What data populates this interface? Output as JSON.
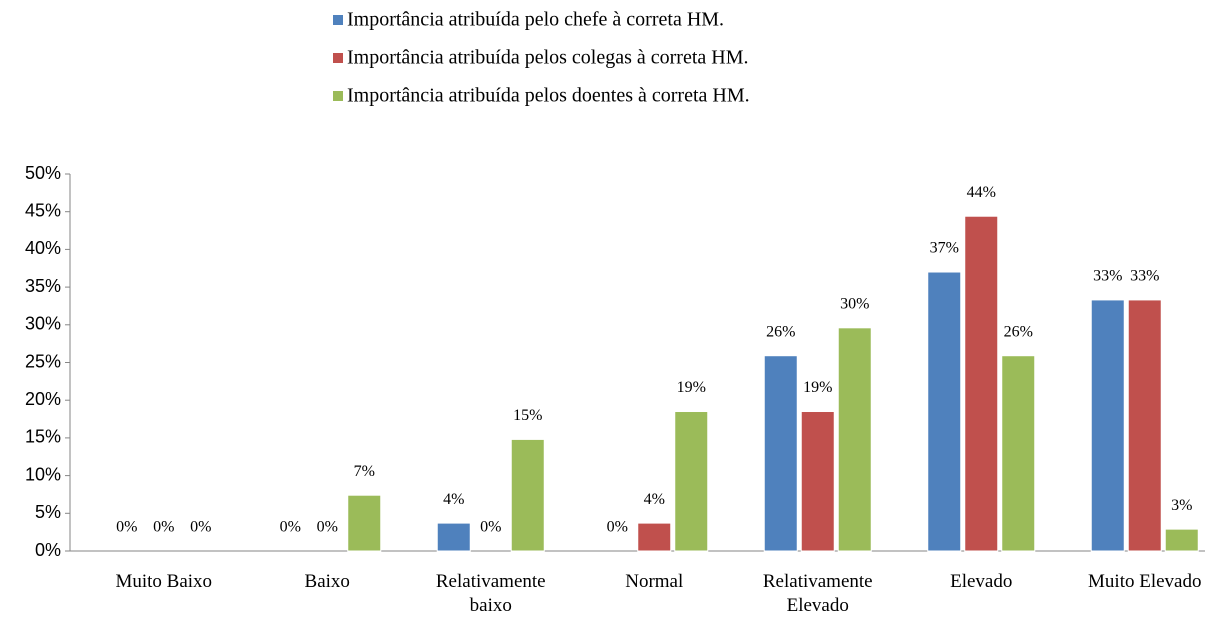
{
  "chart_data": {
    "type": "bar",
    "categories": [
      "Muito Baixo",
      "Baixo",
      "Relativamente baixo",
      "Normal",
      "Relativamente Elevado",
      "Elevado",
      "Muito Elevado"
    ],
    "series": [
      {
        "name": "Importância atribuída pelo chefe à correta HM.",
        "color": "#4f81bd",
        "values": [
          0,
          0,
          3.7,
          0,
          25.9,
          37,
          33.3
        ],
        "value_labels": [
          "0%",
          "0%",
          "4%",
          "0%",
          "26%",
          "37%",
          "33%"
        ]
      },
      {
        "name": "Importância atribuída pelos colegas à correta HM.",
        "color": "#c0504d",
        "values": [
          0,
          0,
          0,
          3.7,
          18.5,
          44.4,
          33.3
        ],
        "value_labels": [
          "0%",
          "0%",
          "0%",
          "4%",
          "19%",
          "44%",
          "33%"
        ]
      },
      {
        "name": "Importância atribuída pelos doentes à correta HM.",
        "color": "#9bbb59",
        "values": [
          0,
          7.4,
          14.8,
          18.5,
          29.6,
          25.9,
          2.9
        ],
        "value_labels": [
          "0%",
          "7%",
          "15%",
          "19%",
          "30%",
          "26%",
          "3%"
        ]
      }
    ],
    "ylim": [
      0,
      50
    ],
    "yticks": [
      {
        "value": 0,
        "label": "0%"
      },
      {
        "value": 5,
        "label": "5%"
      },
      {
        "value": 10,
        "label": "10%"
      },
      {
        "value": 15,
        "label": "15%"
      },
      {
        "value": 20,
        "label": "20%"
      },
      {
        "value": 25,
        "label": "25%"
      },
      {
        "value": 30,
        "label": "30%"
      },
      {
        "value": 35,
        "label": "35%"
      },
      {
        "value": 40,
        "label": "40%"
      },
      {
        "value": 45,
        "label": "45%"
      },
      {
        "value": 50,
        "label": "50%"
      }
    ],
    "legend": "top"
  }
}
